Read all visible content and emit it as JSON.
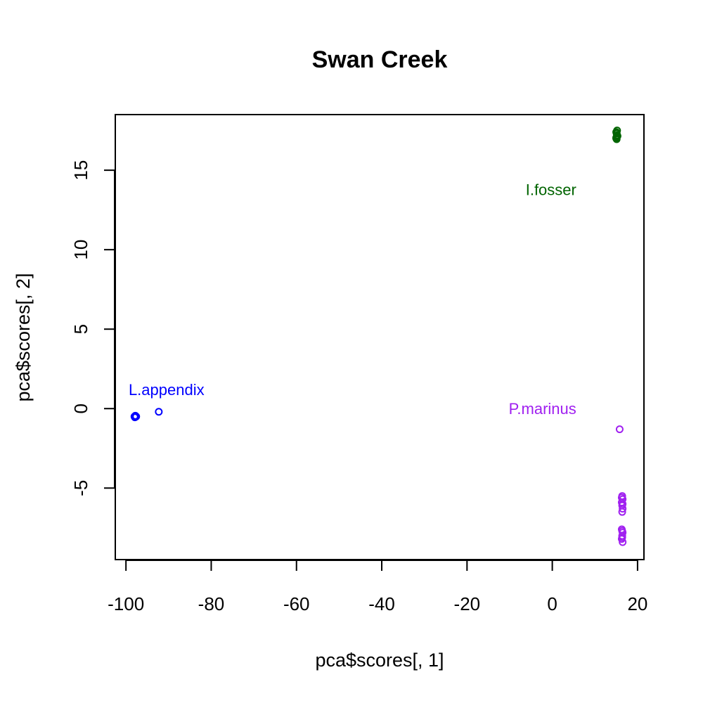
{
  "chart_data": {
    "type": "scatter",
    "title": "Swan Creek",
    "xlabel": "pca$scores[, 1]",
    "ylabel": "pca$scores[, 2]",
    "xlim": [
      -102.5,
      21.5
    ],
    "ylim": [
      -9.5,
      18.5
    ],
    "xticks": [
      -100,
      -80,
      -60,
      -40,
      -20,
      0,
      20
    ],
    "yticks": [
      -5,
      0,
      5,
      10,
      15
    ],
    "grid": false,
    "series": [
      {
        "name": "L.appendix",
        "color": "#0000ff",
        "label_pos": [
          -90.5,
          1.2
        ],
        "x": [
          -98.0,
          -97.8,
          -97.6,
          -97.9,
          -97.7,
          -92.3
        ],
        "y": [
          -0.5,
          -0.45,
          -0.5,
          -0.55,
          -0.48,
          -0.2
        ]
      },
      {
        "name": "I.fosser",
        "color": "#006400",
        "label_pos": [
          -0.3,
          13.8
        ],
        "x": [
          15.0,
          15.1,
          15.2,
          15.1,
          15.0,
          15.2,
          15.1,
          15.0,
          15.3,
          15.1
        ],
        "y": [
          17.0,
          17.1,
          17.2,
          17.3,
          17.4,
          17.5,
          17.35,
          17.05,
          17.15,
          16.95
        ]
      },
      {
        "name": "P.marinus",
        "color": "#a020f0",
        "label_pos": [
          -2.3,
          0.0
        ],
        "x": [
          15.8,
          16.4,
          16.5,
          16.3,
          16.4,
          16.5,
          16.4,
          16.3,
          16.5,
          16.4,
          16.3,
          16.5,
          16.4,
          16.3,
          16.5,
          16.4
        ],
        "y": [
          -1.3,
          -5.5,
          -5.7,
          -5.9,
          -6.1,
          -6.3,
          -6.5,
          -7.6,
          -7.8,
          -8.0,
          -8.2,
          -8.4,
          -7.7,
          -5.6,
          -6.0,
          -8.1
        ]
      }
    ]
  }
}
